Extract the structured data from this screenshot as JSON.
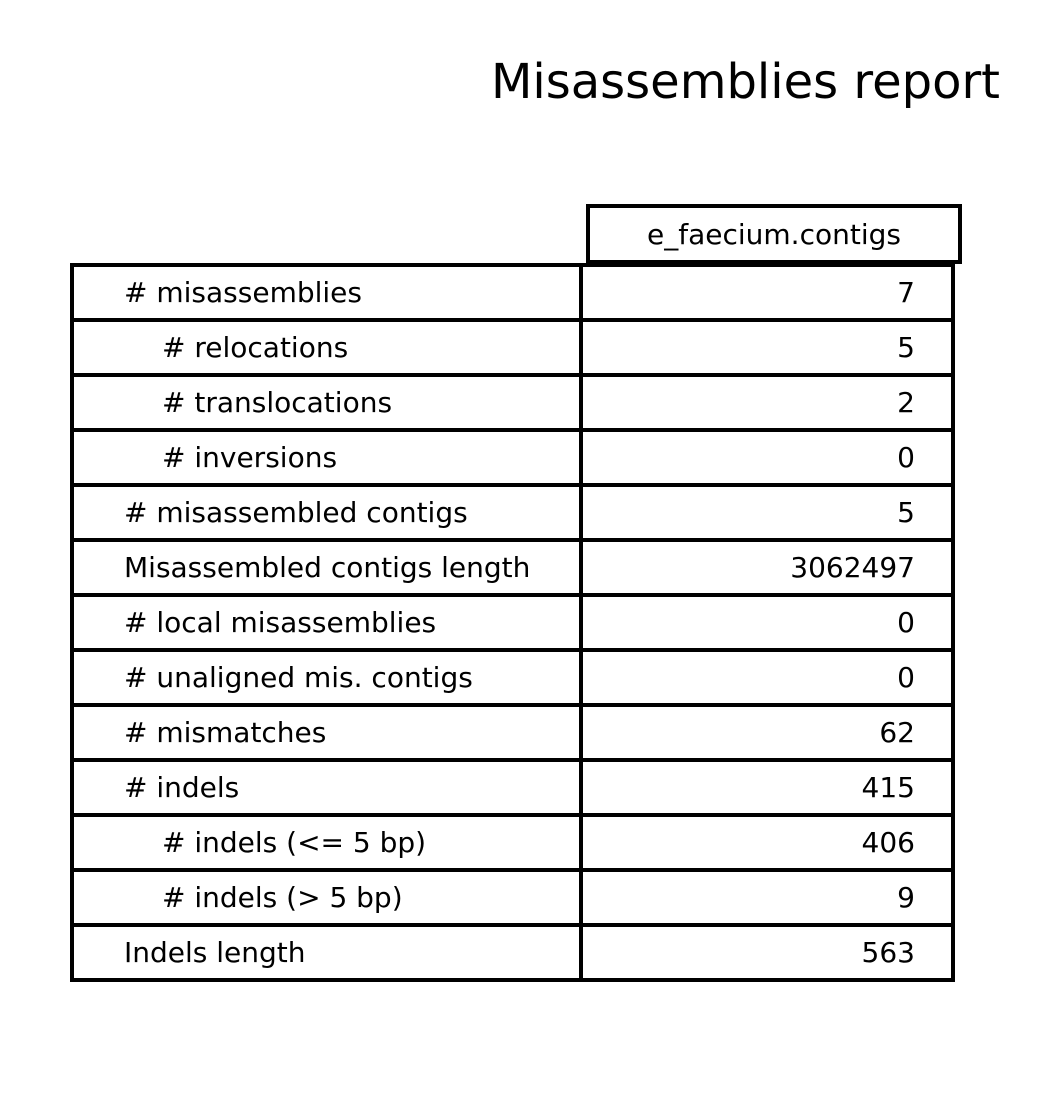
{
  "chart_data": {
    "type": "table",
    "title": "Misassemblies report",
    "columns": [
      "e_faecium.contigs"
    ],
    "rows": [
      {
        "label": "# misassemblies",
        "value": "7",
        "indent": false
      },
      {
        "label": "# relocations",
        "value": "5",
        "indent": true
      },
      {
        "label": "# translocations",
        "value": "2",
        "indent": true
      },
      {
        "label": "# inversions",
        "value": "0",
        "indent": true
      },
      {
        "label": "# misassembled contigs",
        "value": "5",
        "indent": false
      },
      {
        "label": "Misassembled contigs length",
        "value": "3062497",
        "indent": false
      },
      {
        "label": "# local misassemblies",
        "value": "0",
        "indent": false
      },
      {
        "label": "# unaligned mis. contigs",
        "value": "0",
        "indent": false
      },
      {
        "label": "# mismatches",
        "value": "62",
        "indent": false
      },
      {
        "label": "# indels",
        "value": "415",
        "indent": false
      },
      {
        "label": "# indels (<= 5 bp)",
        "value": "406",
        "indent": true
      },
      {
        "label": "# indels (> 5 bp)",
        "value": "9",
        "indent": true
      },
      {
        "label": "Indels length",
        "value": "563",
        "indent": false
      }
    ]
  }
}
